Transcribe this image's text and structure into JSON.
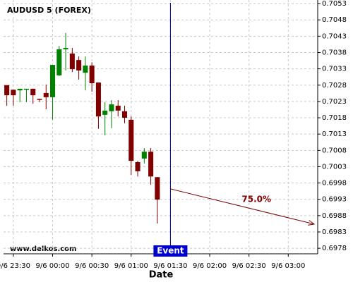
{
  "chart_data": {
    "type": "candlestick",
    "title": "AUDUSD 5 (FOREX)",
    "watermark": "www.delkos.com",
    "x_label": "Date",
    "categories": [
      null,
      "9/6 23:30",
      null,
      null,
      null,
      null,
      null,
      "9/6 00:00",
      null,
      null,
      null,
      null,
      null,
      "9/6 00:30",
      null,
      null,
      null,
      null,
      null,
      "9/6 01:00",
      null,
      null,
      null,
      null,
      null,
      "9/6 01:30",
      null,
      null,
      null,
      null,
      null,
      "9/6 02:00",
      null,
      null,
      null,
      null,
      null,
      "9/6 02:30",
      null,
      null,
      null,
      null,
      null,
      "9/6 03:00",
      null,
      null,
      null,
      null
    ],
    "open": [
      0.7028,
      0.70266,
      0.70264,
      0.70266,
      0.70269,
      0.70238,
      0.70256,
      0.70243,
      0.7031,
      0.7039,
      0.70377,
      0.70357,
      0.70318,
      0.7034,
      0.70288,
      0.70189,
      0.702,
      0.70217,
      0.702,
      0.70174,
      0.70044,
      0.70055,
      0.70076,
      0.69998,
      null,
      null,
      null,
      null,
      null,
      null,
      null,
      null,
      null,
      null,
      null,
      null,
      null,
      null,
      null,
      null,
      null,
      null,
      null,
      null,
      null,
      null,
      null,
      null
    ],
    "high": [
      0.7028,
      0.70266,
      0.70269,
      0.70269,
      0.70269,
      0.70238,
      0.70282,
      0.70342,
      0.704,
      0.7044,
      0.70394,
      0.70368,
      0.70368,
      0.7035,
      0.70288,
      0.70228,
      0.70234,
      0.70234,
      0.70217,
      0.70184,
      0.70048,
      0.70087,
      0.70087,
      0.69998,
      null,
      null,
      null,
      null,
      null,
      null,
      null,
      null,
      null,
      null,
      null,
      null,
      null,
      null,
      null,
      null,
      null,
      null,
      null,
      null,
      null,
      null,
      null,
      null
    ],
    "low": [
      0.70217,
      0.70217,
      0.70228,
      0.70228,
      0.70223,
      0.70228,
      0.70206,
      0.70174,
      0.70308,
      0.70325,
      0.7032,
      0.70297,
      0.70264,
      0.7026,
      0.70146,
      0.70126,
      0.70148,
      0.70184,
      0.70163,
      0.70005,
      0.7,
      0.7004,
      0.69975,
      0.69856,
      null,
      null,
      null,
      null,
      null,
      null,
      null,
      null,
      null,
      null,
      null,
      null,
      null,
      null,
      null,
      null,
      null,
      null,
      null,
      null,
      null,
      null,
      null,
      null
    ],
    "close": [
      0.70249,
      0.70249,
      0.70269,
      0.70269,
      0.70249,
      0.70236,
      0.70243,
      0.70342,
      0.7039,
      0.70394,
      0.70329,
      0.70325,
      0.7034,
      0.70286,
      0.70184,
      0.70202,
      0.70221,
      0.70202,
      0.7018,
      0.70048,
      0.70016,
      0.70076,
      0.7,
      0.69929,
      null,
      null,
      null,
      null,
      null,
      null,
      null,
      null,
      null,
      null,
      null,
      null,
      null,
      null,
      null,
      null,
      null,
      null,
      null,
      null,
      null,
      null,
      null,
      null
    ],
    "up_color": "#008000",
    "down_color": "#800000",
    "event": {
      "label": "Event",
      "at": "9/6 01:30",
      "color": "#0000cc"
    },
    "projection": {
      "label": "75.0%",
      "start": 0.69962,
      "end": 0.69854,
      "color": "#800000"
    },
    "ylim": [
      0.69763,
      0.70541
    ],
    "yticks": [
      0.7053,
      0.7048,
      0.7043,
      0.7038,
      0.7033,
      0.7028,
      0.7023,
      0.7018,
      0.7013,
      0.7008,
      0.7003,
      0.6998,
      0.6993,
      0.6988,
      0.6983,
      0.6978
    ],
    "grid": true
  }
}
